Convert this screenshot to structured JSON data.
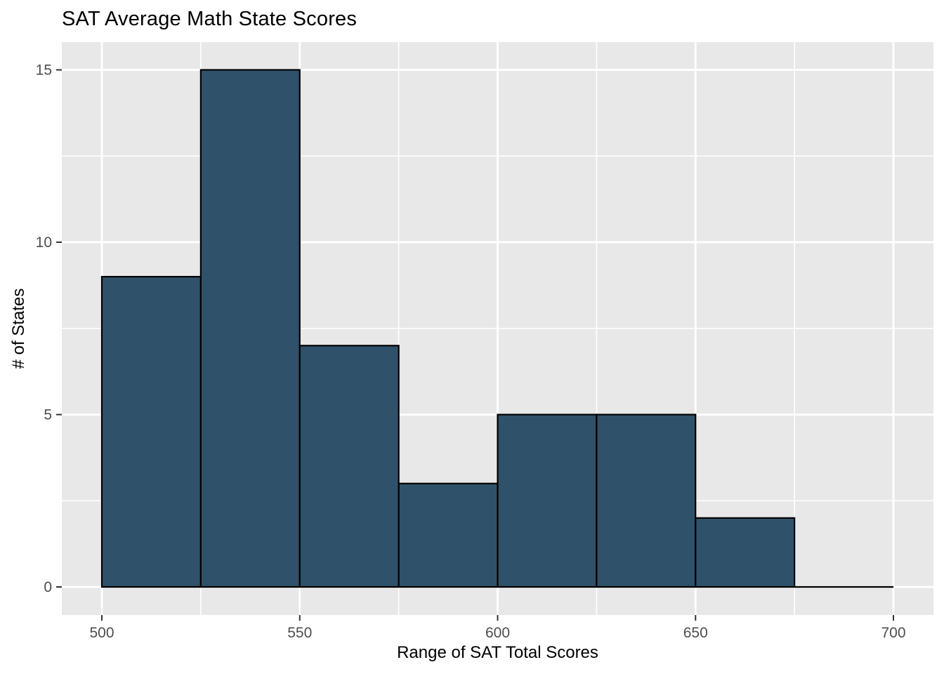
{
  "chart_data": {
    "type": "bar",
    "subtype": "histogram",
    "title": "SAT Average Math State Scores",
    "xlabel": "Range of SAT Total Scores",
    "ylabel": "# of States",
    "bin_width": 25,
    "bin_edges": [
      500,
      525,
      550,
      575,
      600,
      625,
      650,
      675,
      700
    ],
    "counts": [
      9,
      15,
      7,
      3,
      5,
      5,
      2,
      0
    ],
    "x_ticks": [
      500,
      550,
      600,
      650,
      700
    ],
    "x_tick_labels": [
      "500",
      "550",
      "600",
      "650",
      "700"
    ],
    "y_ticks": [
      0,
      5,
      10,
      15
    ],
    "y_tick_labels": [
      "0",
      "5",
      "10",
      "15"
    ],
    "x_minor_gridlines": [
      525,
      575,
      625,
      675
    ],
    "y_minor_gridlines": [
      2.5,
      7.5,
      12.5
    ],
    "xlim": [
      500,
      700
    ],
    "ylim": [
      0,
      15
    ],
    "grid": true,
    "legend": "none",
    "colors": {
      "bar_fill": "#2F526A",
      "bar_stroke": "#000000",
      "panel_bg": "#E8E8E8",
      "grid_major": "#FFFFFF",
      "grid_minor": "#FFFFFF",
      "tick_mark": "#333333",
      "tick_label": "#4D4D4D",
      "axis_title": "#000000",
      "title": "#000000"
    }
  }
}
